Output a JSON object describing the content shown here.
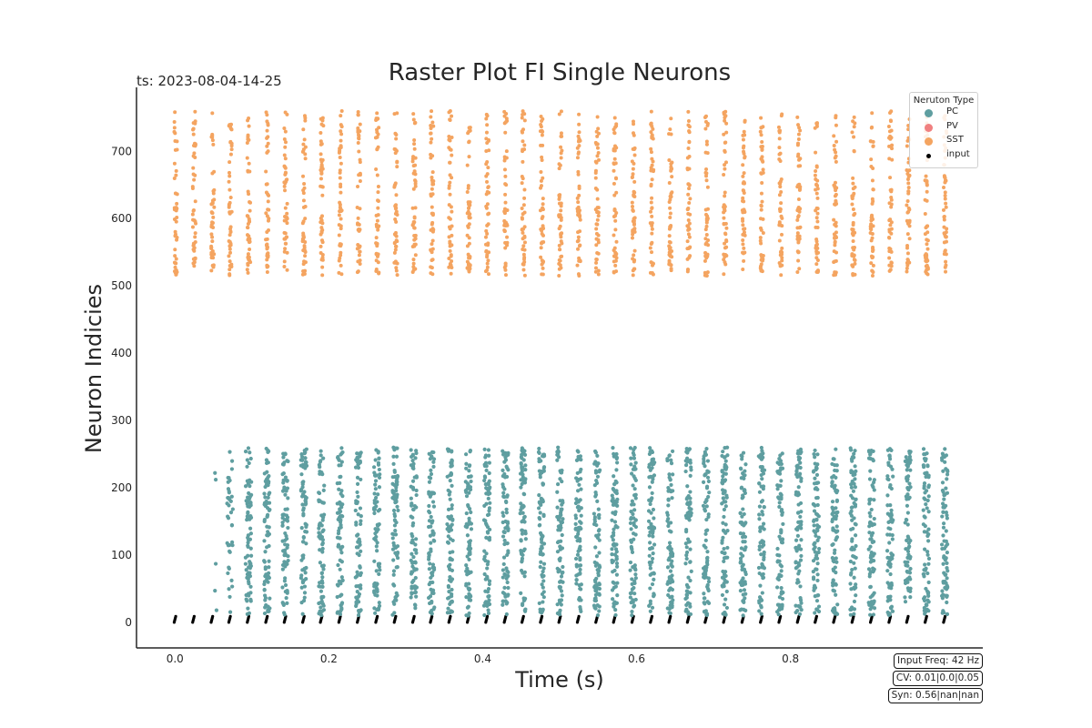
{
  "chart_data": {
    "type": "scatter",
    "title": "Raster Plot FI Single Neurons",
    "timestamp": "ts: 2023-08-04-14-25",
    "xlabel": "Time (s)",
    "ylabel": "Neuron Indicies",
    "xlim": [
      -0.05,
      1.05
    ],
    "ylim": [
      -38,
      795
    ],
    "xticks": [
      0.0,
      0.2,
      0.4,
      0.6,
      0.8
    ],
    "xtick_labels": [
      "0.0",
      "0.2",
      "0.4",
      "0.6",
      "0.8"
    ],
    "yticks": [
      0,
      100,
      200,
      300,
      400,
      500,
      600,
      700
    ],
    "ytick_labels": [
      "0",
      "100",
      "200",
      "300",
      "400",
      "500",
      "600",
      "700"
    ],
    "grid": false,
    "legend": {
      "title": "Neruton Type",
      "placement": "top-right",
      "entries": [
        {
          "label": "PC",
          "color": "#5f9ea0"
        },
        {
          "label": "PV",
          "color": "#f08080"
        },
        {
          "label": "SST",
          "color": "#f4a460"
        },
        {
          "label": "input",
          "color": "#000000"
        }
      ]
    },
    "input_frequency_hz": 42,
    "input_spike_times": [
      0.0,
      0.024,
      0.048,
      0.071,
      0.095,
      0.119,
      0.143,
      0.167,
      0.19,
      0.214,
      0.238,
      0.262,
      0.286,
      0.31,
      0.333,
      0.357,
      0.381,
      0.405,
      0.429,
      0.452,
      0.476,
      0.5,
      0.524,
      0.548,
      0.571,
      0.595,
      0.619,
      0.643,
      0.667,
      0.69,
      0.714,
      0.738,
      0.762,
      0.786,
      0.81,
      0.833,
      0.857,
      0.881,
      0.905,
      0.929,
      0.952,
      0.976,
      1.0
    ],
    "series": [
      {
        "name": "PC",
        "color": "#5f9ea0",
        "neuron_range": [
          0,
          260
        ],
        "burst_times_start": 0.071,
        "sparse_points": [
          [
            0.052,
            222
          ],
          [
            0.053,
            212
          ],
          [
            0.053,
            87
          ],
          [
            0.052,
            47
          ],
          [
            0.054,
            18
          ]
        ]
      },
      {
        "name": "PV",
        "color": "#f08080",
        "neuron_range": [
          260,
          515
        ]
      },
      {
        "name": "SST",
        "color": "#f4a460",
        "neuron_range": [
          515,
          760
        ],
        "burst_times_start": 0.0
      },
      {
        "name": "input",
        "color": "#000000",
        "neuron_range": [
          0,
          10
        ]
      }
    ]
  },
  "annotations": {
    "input_freq": "Input Freq: 42 Hz",
    "cv": "CV: 0.01|0.0|0.05",
    "syn": "Syn: 0.56|nan|nan"
  }
}
